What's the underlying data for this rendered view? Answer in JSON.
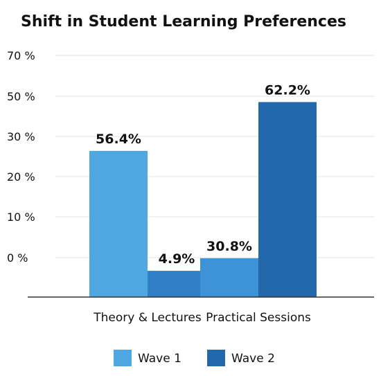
{
  "chart_data": {
    "type": "bar",
    "title": "Shift in Student Learning Preferences",
    "xlabel": "",
    "ylabel": "",
    "categories": [
      "Theory & Lectures",
      "Practical Sessions"
    ],
    "series": [
      {
        "name": "Wave 1",
        "color": "#4ea7e0",
        "labels": [
          "56.4%",
          "30.8%"
        ]
      },
      {
        "name": "Wave 2",
        "color": "#2f7fc6",
        "labels": [
          "4.9%",
          "62.2%"
        ]
      }
    ],
    "bar_colors": [
      [
        "#4ea7e0",
        "#2f7fc6"
      ],
      [
        "#3d93d6",
        "#2468ac"
      ]
    ],
    "legend_colors": [
      "#4ea7e0",
      "#2468ac"
    ],
    "y_ticks": [
      "70 %",
      "50 %",
      "30 %",
      "20 %",
      "10 %",
      "0 %"
    ],
    "bar_levels": [
      [
        0.557,
        0.1
      ],
      [
        0.148,
        0.743
      ]
    ],
    "grid": true,
    "legend_position": "bottom"
  }
}
